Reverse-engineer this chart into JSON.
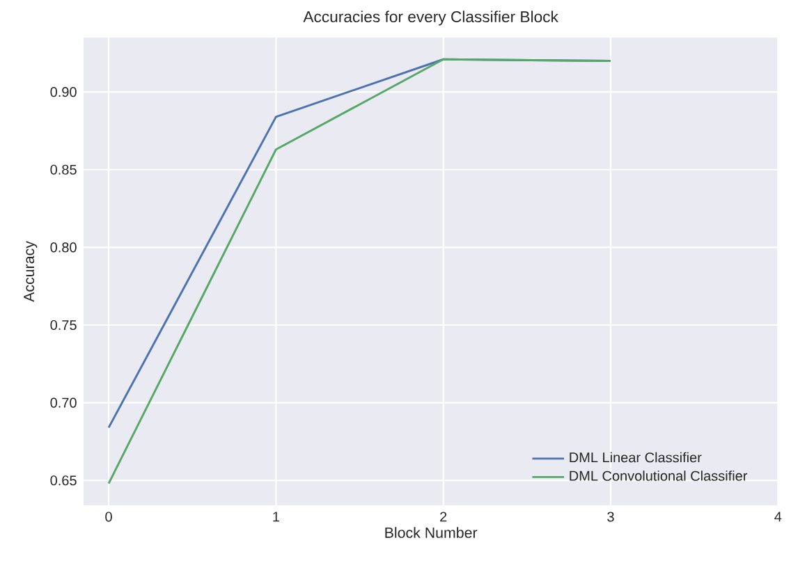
{
  "chart_data": {
    "type": "line",
    "title": "Accuracies for every Classifier Block",
    "xlabel": "Block Number",
    "ylabel": "Accuracy",
    "x": [
      0,
      1,
      2,
      3
    ],
    "series": [
      {
        "name": "DML Linear Classifier",
        "color": "#4c72b0",
        "values": [
          0.684,
          0.884,
          0.921,
          0.92
        ]
      },
      {
        "name": "DML Convolutional Classifier",
        "color": "#55a868",
        "values": [
          0.648,
          0.863,
          0.921,
          0.92
        ]
      }
    ],
    "xlim": [
      -0.15,
      4.0
    ],
    "ylim": [
      0.634,
      0.935
    ],
    "xticks": [
      0,
      1,
      2,
      3,
      4
    ],
    "yticks": [
      {
        "value": 0.65,
        "label": "0.65"
      },
      {
        "value": 0.7,
        "label": "0.70"
      },
      {
        "value": 0.75,
        "label": "0.75"
      },
      {
        "value": 0.8,
        "label": "0.80"
      },
      {
        "value": 0.85,
        "label": "0.85"
      },
      {
        "value": 0.9,
        "label": "0.90"
      }
    ],
    "grid": true,
    "legend": "bottom right",
    "marker": "none",
    "line_style": "solid"
  }
}
